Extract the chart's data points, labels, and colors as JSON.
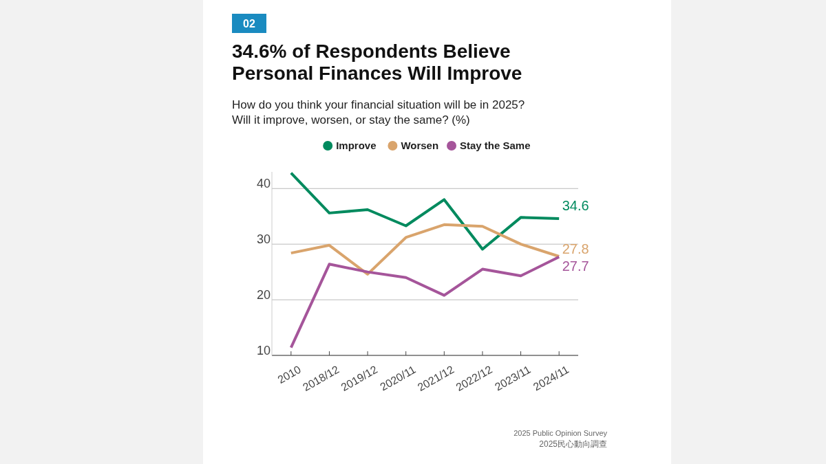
{
  "chart_data": {
    "type": "line",
    "title": "34.6% of Respondents Believe\nPersonal Finances Will Improve",
    "subtitle": "How do you think your financial situation will be in 2025?\nWill it improve, worsen, or stay the same? (%)",
    "categories": [
      "2010",
      "2018/12",
      "2019/12",
      "2020/11",
      "2021/12",
      "2022/12",
      "2023/11",
      "2024/11"
    ],
    "series": [
      {
        "name": "Improve",
        "color": "#008a5e",
        "values": [
          42.8,
          35.6,
          36.2,
          33.3,
          38.0,
          29.1,
          34.8,
          34.6
        ],
        "value_labels": [
          null,
          null,
          null,
          null,
          null,
          null,
          null,
          "34.6"
        ]
      },
      {
        "name": "Worsen",
        "color": "#d9a46c",
        "values": [
          28.4,
          29.8,
          24.6,
          31.2,
          33.5,
          33.2,
          30.0,
          27.8
        ],
        "value_labels": [
          null,
          null,
          null,
          null,
          null,
          null,
          null,
          "27.8"
        ]
      },
      {
        "name": "Stay the Same",
        "color": "#a5559a",
        "values": [
          11.4,
          26.4,
          25.0,
          24.0,
          20.8,
          25.5,
          24.3,
          27.7
        ],
        "value_labels": [
          null,
          null,
          null,
          null,
          null,
          null,
          null,
          "27.7"
        ]
      }
    ],
    "ylim": [
      10,
      43
    ],
    "yticks": [
      10,
      20,
      30,
      40
    ],
    "grid": "y",
    "legend": "top",
    "marker": "none",
    "line_style": "solid",
    "annotations": [
      "02",
      "2025 Public Opinion Survey",
      "2025民心動向調查"
    ]
  }
}
